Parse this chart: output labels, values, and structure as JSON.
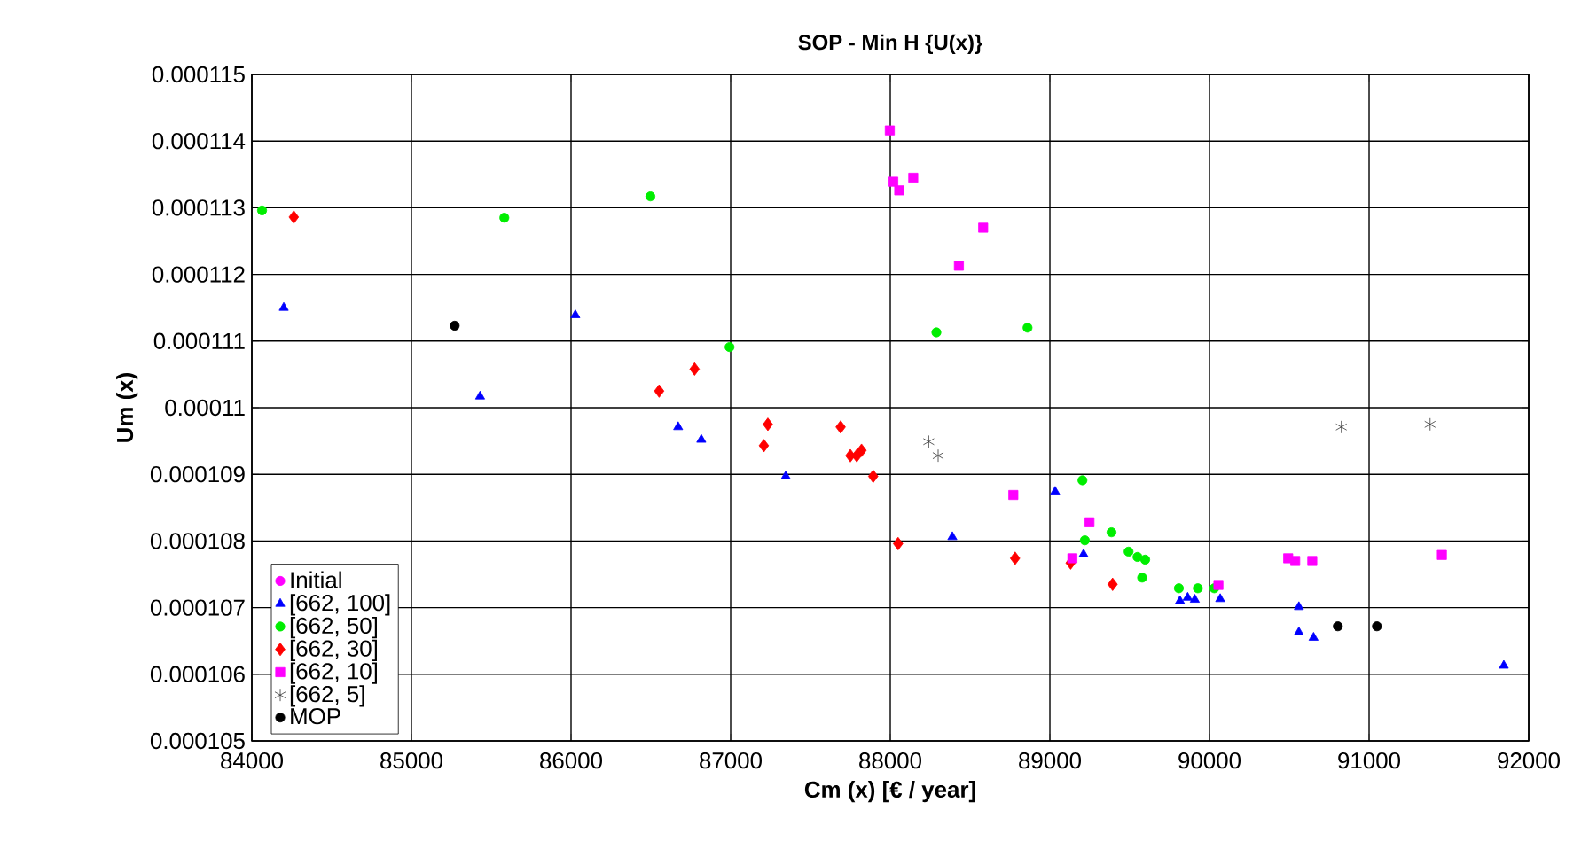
{
  "chart_data": {
    "type": "scatter",
    "title": "SOP - Min H {U(x)}",
    "xlabel": "Cm (x) [€ / year]",
    "ylabel": "Um (x)",
    "xlim": [
      84000,
      92000
    ],
    "ylim": [
      0.000105,
      0.000115
    ],
    "xticks": [
      84000,
      85000,
      86000,
      87000,
      88000,
      89000,
      90000,
      91000,
      92000
    ],
    "yticks": [
      0.000105,
      0.000106,
      0.000107,
      0.000108,
      0.000109,
      0.00011,
      0.000111,
      0.000112,
      0.000113,
      0.000114,
      0.000115
    ],
    "grid": true,
    "legend": "bottom left",
    "series": [
      {
        "name": "Initial",
        "color": "#ff00ff",
        "marker": "circle"
      },
      {
        "name": "[662, 100]",
        "color": "#0000ff",
        "marker": "triangle",
        "x": [
          84200,
          86027,
          85430,
          86671,
          86816,
          87345,
          88389,
          89033,
          89211,
          89815,
          89863,
          89908,
          90067,
          90560,
          90560,
          90652,
          91844
        ],
        "values": [
          0.0001115,
          0.00011139,
          0.00011017,
          0.00010971,
          0.00010952,
          0.00010897,
          0.00010806,
          0.00010874,
          0.0001078,
          0.0001071,
          0.00010715,
          0.00010712,
          0.00010713,
          0.00010701,
          0.00010663,
          0.00010655,
          0.00010613
        ]
      },
      {
        "name": "[662, 50]",
        "color": "#00ee00",
        "marker": "circle",
        "x": [
          84064,
          85582,
          86497,
          86993,
          88289,
          88860,
          89204,
          89219,
          89386,
          89493,
          89549,
          89597,
          89578,
          89808,
          89927,
          90030
        ],
        "values": [
          0.00011296,
          0.00011285,
          0.00011317,
          0.00011091,
          0.00011113,
          0.0001112,
          0.00010891,
          0.00010801,
          0.00010813,
          0.00010784,
          0.00010776,
          0.00010772,
          0.00010745,
          0.00010729,
          0.00010729,
          0.00010729
        ]
      },
      {
        "name": "[662, 30]",
        "color": "#ff0000",
        "marker": "diamond",
        "x": [
          84263,
          86774,
          86552,
          87233,
          87208,
          87689,
          87750,
          87820,
          87790,
          87893,
          88049,
          88782,
          89130,
          89393
        ],
        "values": [
          0.00011286,
          0.00011058,
          0.00011025,
          0.00010975,
          0.00010943,
          0.00010971,
          0.00010928,
          0.00010936,
          0.00010928,
          0.00010897,
          0.00010796,
          0.00010774,
          0.00010767,
          0.00010735
        ]
      },
      {
        "name": "[662, 10]",
        "color": "#ff00ff",
        "marker": "square",
        "x": [
          87997,
          88019,
          88056,
          88144,
          88582,
          88430,
          88771,
          89248,
          89141,
          90056,
          90493,
          90537,
          90644,
          91456
        ],
        "values": [
          0.00011416,
          0.00011339,
          0.00011326,
          0.00011345,
          0.0001127,
          0.00011213,
          0.00010869,
          0.00010828,
          0.00010774,
          0.00010734,
          0.00010774,
          0.0001077,
          0.0001077,
          0.00010779
        ]
      },
      {
        "name": "[662, 5]",
        "color": "#333333",
        "marker": "cross",
        "x": [
          88241,
          88300,
          90826,
          91382
        ],
        "values": [
          0.00010949,
          0.00010928,
          0.00010971,
          0.00010975
        ]
      },
      {
        "name": "MOP",
        "color": "#000000",
        "marker": "circle",
        "x": [
          85271,
          90804,
          91049
        ],
        "values": [
          0.00011123,
          0.00010672,
          0.00010672
        ]
      }
    ]
  }
}
